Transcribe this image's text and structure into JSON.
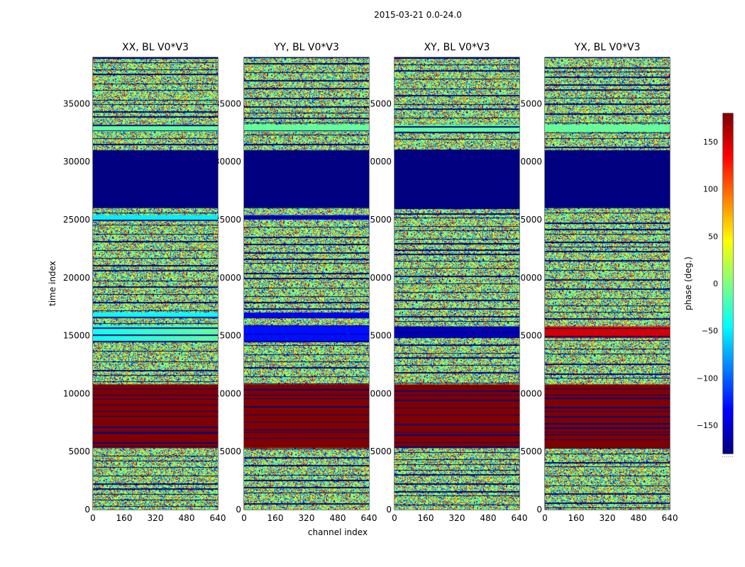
{
  "figure": {
    "title": "2015-03-21 0.0-24.0",
    "ylabel": "time index",
    "xlabel": "channel index",
    "colorbar_label": "phase (deg.)",
    "colorbar_footer": "......"
  },
  "chart_data": {
    "type": "heatmap",
    "colormap": "jet",
    "xlim": [
      0,
      640
    ],
    "ylim": [
      0,
      39000
    ],
    "xticks": [
      0,
      160,
      320,
      480,
      640
    ],
    "yticks": [
      0,
      5000,
      10000,
      15000,
      20000,
      25000,
      30000,
      35000
    ],
    "colorbar": {
      "range": [
        -180,
        180
      ],
      "ticks": [
        -150,
        -100,
        -50,
        0,
        50,
        100,
        150
      ]
    },
    "panels": [
      {
        "title": "XX, BL V0*V3",
        "bands": [
          {
            "y0": 5300,
            "y1": 10800,
            "phase": 180
          },
          {
            "y0": 14500,
            "y1": 15900,
            "phase": -40,
            "ramp_to": -10
          },
          {
            "y0": 16500,
            "y1": 17000,
            "phase": -45
          },
          {
            "y0": 25000,
            "y1": 25400,
            "phase": -50
          },
          {
            "y0": 26000,
            "y1": 31000,
            "phase": -180
          },
          {
            "y0": 32600,
            "y1": 33200,
            "phase": -10
          }
        ]
      },
      {
        "title": "YY, BL V0*V3",
        "bands": [
          {
            "y0": 5300,
            "y1": 10800,
            "phase": 180
          },
          {
            "y0": 14500,
            "y1": 15900,
            "phase": -130
          },
          {
            "y0": 16500,
            "y1": 17000,
            "phase": -140
          },
          {
            "y0": 25000,
            "y1": 25400,
            "phase": -150
          },
          {
            "y0": 26000,
            "y1": 31000,
            "phase": -180
          },
          {
            "y0": 32600,
            "y1": 33200,
            "phase": -10
          }
        ]
      },
      {
        "title": "XY, BL V0*V3",
        "bands": [
          {
            "y0": 5300,
            "y1": 10800,
            "phase": 180
          },
          {
            "y0": 14800,
            "y1": 15800,
            "phase": -160
          },
          {
            "y0": 26000,
            "y1": 31000,
            "phase": -180
          },
          {
            "y0": 32600,
            "y1": 33200,
            "phase": -10
          }
        ]
      },
      {
        "title": "YX, BL V0*V3",
        "bands": [
          {
            "y0": 5300,
            "y1": 10800,
            "phase": 180
          },
          {
            "y0": 14800,
            "y1": 15800,
            "phase": 150
          },
          {
            "y0": 26000,
            "y1": 31000,
            "phase": -180
          },
          {
            "y0": 32600,
            "y1": 33200,
            "phase": -10
          }
        ]
      }
    ]
  }
}
